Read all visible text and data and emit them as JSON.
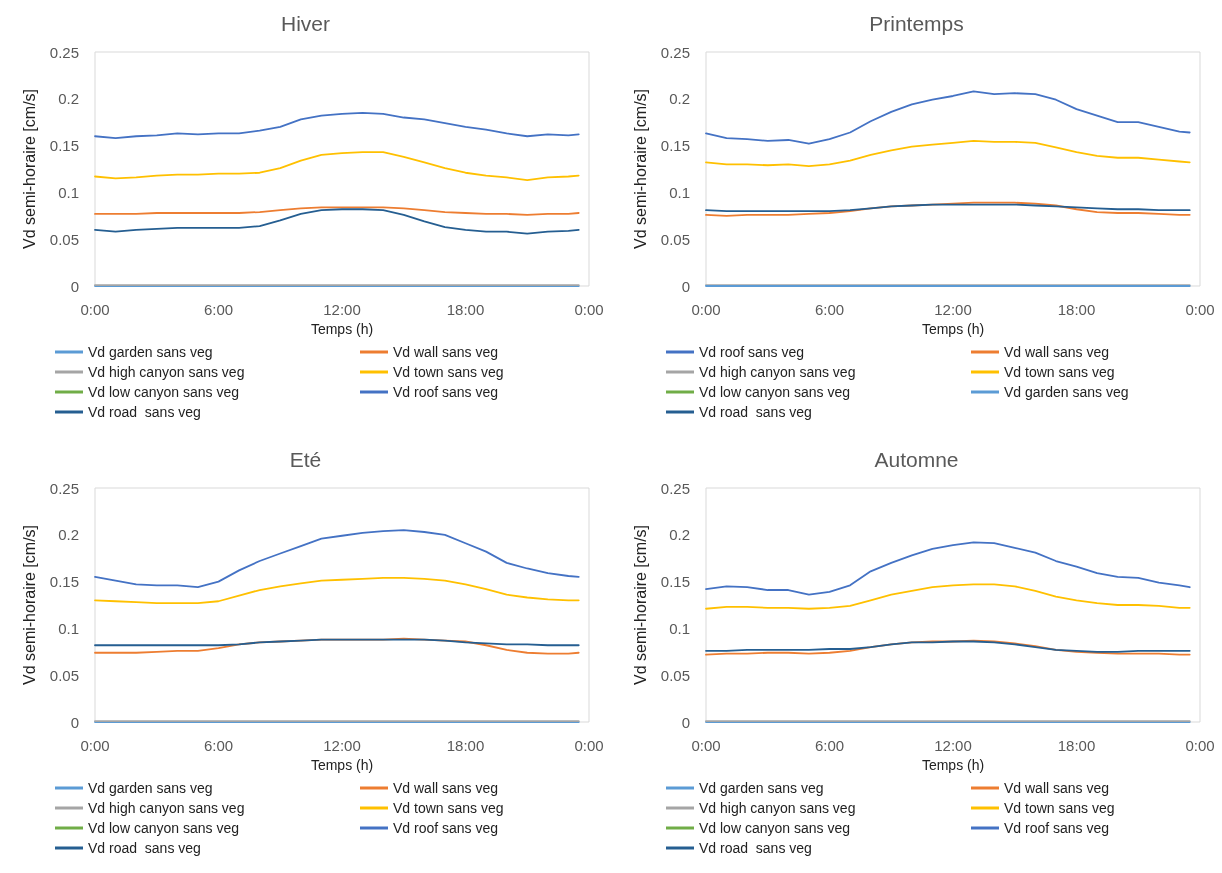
{
  "chart_data": [
    {
      "type": "line",
      "title": "Hiver",
      "xlabel": "Temps (h)",
      "ylabel": "Vd semi-horaire [cm/s]",
      "xlim": [
        0,
        24
      ],
      "xticks": [
        {
          "value": 0,
          "label": "0:00"
        },
        {
          "value": 6,
          "label": "6:00"
        },
        {
          "value": 12,
          "label": "12:00"
        },
        {
          "value": 18,
          "label": "18:00"
        },
        {
          "value": 24,
          "label": "0:00"
        }
      ],
      "ylim": [
        0,
        0.25
      ],
      "yticks": [
        0,
        0.05,
        0.1,
        0.15,
        0.2,
        0.25
      ],
      "grid": false,
      "legend": "bottom",
      "marker": "none",
      "x": [
        0,
        1,
        2,
        3,
        4,
        5,
        6,
        7,
        8,
        9,
        10,
        11,
        12,
        13,
        14,
        15,
        16,
        17,
        18,
        19,
        20,
        21,
        22,
        23,
        23.5
      ],
      "series": [
        {
          "name": "Vd garden sans veg",
          "color": "#5b9bd5",
          "values": [
            0,
            0,
            0,
            0,
            0,
            0,
            0,
            0,
            0,
            0,
            0,
            0,
            0,
            0,
            0,
            0,
            0,
            0,
            0,
            0,
            0,
            0,
            0,
            0,
            0
          ]
        },
        {
          "name": "Vd wall sans veg",
          "color": "#ed7d31",
          "values": [
            0.077,
            0.077,
            0.077,
            0.078,
            0.078,
            0.078,
            0.078,
            0.078,
            0.079,
            0.081,
            0.083,
            0.084,
            0.084,
            0.084,
            0.084,
            0.083,
            0.081,
            0.079,
            0.078,
            0.077,
            0.077,
            0.076,
            0.077,
            0.077,
            0.078
          ]
        },
        {
          "name": "Vd high canyon sans veg",
          "color": "#a5a5a5",
          "values": [
            0.001,
            0.001,
            0.001,
            0.001,
            0.001,
            0.001,
            0.001,
            0.001,
            0.001,
            0.001,
            0.001,
            0.001,
            0.001,
            0.001,
            0.001,
            0.001,
            0.001,
            0.001,
            0.001,
            0.001,
            0.001,
            0.001,
            0.001,
            0.001,
            0.001
          ]
        },
        {
          "name": "Vd town sans veg",
          "color": "#ffc000",
          "values": [
            0.117,
            0.115,
            0.116,
            0.118,
            0.119,
            0.119,
            0.12,
            0.12,
            0.121,
            0.126,
            0.134,
            0.14,
            0.142,
            0.143,
            0.143,
            0.138,
            0.132,
            0.126,
            0.121,
            0.118,
            0.116,
            0.113,
            0.116,
            0.117,
            0.118
          ]
        },
        {
          "name": "Vd low canyon sans veg",
          "color": "#70ad47",
          "values": [
            null,
            null,
            null,
            null,
            null,
            null,
            null,
            null,
            null,
            null,
            null,
            null,
            null,
            null,
            null,
            null,
            null,
            null,
            null,
            null,
            null,
            null,
            null,
            null,
            null
          ]
        },
        {
          "name": "Vd roof sans veg",
          "color": "#4472c4",
          "values": [
            0.16,
            0.158,
            0.16,
            0.161,
            0.163,
            0.162,
            0.163,
            0.163,
            0.166,
            0.17,
            0.178,
            0.182,
            0.184,
            0.185,
            0.184,
            0.18,
            0.178,
            0.174,
            0.17,
            0.167,
            0.163,
            0.16,
            0.162,
            0.161,
            0.162
          ]
        },
        {
          "name": "Vd road  sans veg",
          "color": "#255e91",
          "values": [
            0.06,
            0.058,
            0.06,
            0.061,
            0.062,
            0.062,
            0.062,
            0.062,
            0.064,
            0.07,
            0.077,
            0.081,
            0.082,
            0.082,
            0.081,
            0.076,
            0.069,
            0.063,
            0.06,
            0.058,
            0.058,
            0.056,
            0.058,
            0.059,
            0.06
          ]
        }
      ]
    },
    {
      "type": "line",
      "title": "Printemps",
      "xlabel": "Temps (h)",
      "ylabel": "Vd semi-horaire [cm/s]",
      "xlim": [
        0,
        24
      ],
      "xticks": [
        {
          "value": 0,
          "label": "0:00"
        },
        {
          "value": 6,
          "label": "6:00"
        },
        {
          "value": 12,
          "label": "12:00"
        },
        {
          "value": 18,
          "label": "18:00"
        },
        {
          "value": 24,
          "label": "0:00"
        }
      ],
      "ylim": [
        0,
        0.25
      ],
      "yticks": [
        0,
        0.05,
        0.1,
        0.15,
        0.2,
        0.25
      ],
      "grid": false,
      "legend": "bottom",
      "marker": "none",
      "x": [
        0,
        1,
        2,
        3,
        4,
        5,
        6,
        7,
        8,
        9,
        10,
        11,
        12,
        13,
        14,
        15,
        16,
        17,
        18,
        19,
        20,
        21,
        22,
        23,
        23.5
      ],
      "series": [
        {
          "name": "Vd roof sans veg",
          "color": "#4472c4",
          "values": [
            0.163,
            0.158,
            0.157,
            0.155,
            0.156,
            0.152,
            0.157,
            0.164,
            0.176,
            0.186,
            0.194,
            0.199,
            0.203,
            0.208,
            0.205,
            0.206,
            0.205,
            0.199,
            0.189,
            0.182,
            0.175,
            0.175,
            0.17,
            0.165,
            0.164
          ]
        },
        {
          "name": "Vd wall sans veg",
          "color": "#ed7d31",
          "values": [
            0.076,
            0.075,
            0.076,
            0.076,
            0.076,
            0.077,
            0.078,
            0.08,
            0.083,
            0.085,
            0.086,
            0.087,
            0.088,
            0.089,
            0.089,
            0.089,
            0.088,
            0.086,
            0.082,
            0.079,
            0.078,
            0.078,
            0.077,
            0.076,
            0.076
          ]
        },
        {
          "name": "Vd high canyon sans veg",
          "color": "#a5a5a5",
          "values": [
            0.001,
            0.001,
            0.001,
            0.001,
            0.001,
            0.001,
            0.001,
            0.001,
            0.001,
            0.001,
            0.001,
            0.001,
            0.001,
            0.001,
            0.001,
            0.001,
            0.001,
            0.001,
            0.001,
            0.001,
            0.001,
            0.001,
            0.001,
            0.001,
            0.001
          ]
        },
        {
          "name": "Vd town sans veg",
          "color": "#ffc000",
          "values": [
            0.132,
            0.13,
            0.13,
            0.129,
            0.13,
            0.128,
            0.13,
            0.134,
            0.14,
            0.145,
            0.149,
            0.151,
            0.153,
            0.155,
            0.154,
            0.154,
            0.153,
            0.148,
            0.143,
            0.139,
            0.137,
            0.137,
            0.135,
            0.133,
            0.132
          ]
        },
        {
          "name": "Vd low canyon sans veg",
          "color": "#70ad47",
          "values": [
            null,
            null,
            null,
            null,
            null,
            null,
            null,
            null,
            null,
            null,
            null,
            null,
            null,
            null,
            null,
            null,
            null,
            null,
            null,
            null,
            null,
            null,
            null,
            null,
            null
          ]
        },
        {
          "name": "Vd garden sans veg",
          "color": "#5b9bd5",
          "values": [
            0,
            0,
            0,
            0,
            0,
            0,
            0,
            0,
            0,
            0,
            0,
            0,
            0,
            0,
            0,
            0,
            0,
            0,
            0,
            0,
            0,
            0,
            0,
            0,
            0
          ]
        },
        {
          "name": "Vd road  sans veg",
          "color": "#255e91",
          "values": [
            0.081,
            0.08,
            0.08,
            0.08,
            0.08,
            0.08,
            0.08,
            0.081,
            0.083,
            0.085,
            0.086,
            0.087,
            0.087,
            0.087,
            0.087,
            0.087,
            0.086,
            0.085,
            0.084,
            0.083,
            0.082,
            0.082,
            0.081,
            0.081,
            0.081
          ]
        }
      ]
    },
    {
      "type": "line",
      "title": "Eté",
      "xlabel": "Temps (h)",
      "ylabel": "Vd semi-horaire [cm/s]",
      "xlim": [
        0,
        24
      ],
      "xticks": [
        {
          "value": 0,
          "label": "0:00"
        },
        {
          "value": 6,
          "label": "6:00"
        },
        {
          "value": 12,
          "label": "12:00"
        },
        {
          "value": 18,
          "label": "18:00"
        },
        {
          "value": 24,
          "label": "0:00"
        }
      ],
      "ylim": [
        0,
        0.25
      ],
      "yticks": [
        0,
        0.05,
        0.1,
        0.15,
        0.2,
        0.25
      ],
      "grid": false,
      "legend": "bottom",
      "marker": "none",
      "x": [
        0,
        1,
        2,
        3,
        4,
        5,
        6,
        7,
        8,
        9,
        10,
        11,
        12,
        13,
        14,
        15,
        16,
        17,
        18,
        19,
        20,
        21,
        22,
        23,
        23.5
      ],
      "series": [
        {
          "name": "Vd garden sans veg",
          "color": "#5b9bd5",
          "values": [
            0,
            0,
            0,
            0,
            0,
            0,
            0,
            0,
            0,
            0,
            0,
            0,
            0,
            0,
            0,
            0,
            0,
            0,
            0,
            0,
            0,
            0,
            0,
            0,
            0
          ]
        },
        {
          "name": "Vd wall sans veg",
          "color": "#ed7d31",
          "values": [
            0.074,
            0.074,
            0.074,
            0.075,
            0.076,
            0.076,
            0.079,
            0.083,
            0.085,
            0.086,
            0.087,
            0.088,
            0.088,
            0.088,
            0.088,
            0.089,
            0.088,
            0.087,
            0.086,
            0.082,
            0.077,
            0.074,
            0.073,
            0.073,
            0.074
          ]
        },
        {
          "name": "Vd high canyon sans veg",
          "color": "#a5a5a5",
          "values": [
            0.001,
            0.001,
            0.001,
            0.001,
            0.001,
            0.001,
            0.001,
            0.001,
            0.001,
            0.001,
            0.001,
            0.001,
            0.001,
            0.001,
            0.001,
            0.001,
            0.001,
            0.001,
            0.001,
            0.001,
            0.001,
            0.001,
            0.001,
            0.001,
            0.001
          ]
        },
        {
          "name": "Vd town sans veg",
          "color": "#ffc000",
          "values": [
            0.13,
            0.129,
            0.128,
            0.127,
            0.127,
            0.127,
            0.129,
            0.135,
            0.141,
            0.145,
            0.148,
            0.151,
            0.152,
            0.153,
            0.154,
            0.154,
            0.153,
            0.151,
            0.147,
            0.142,
            0.136,
            0.133,
            0.131,
            0.13,
            0.13
          ]
        },
        {
          "name": "Vd low canyon sans veg",
          "color": "#70ad47",
          "values": [
            null,
            null,
            null,
            null,
            null,
            null,
            null,
            null,
            null,
            null,
            null,
            null,
            null,
            null,
            null,
            null,
            null,
            null,
            null,
            null,
            null,
            null,
            null,
            null,
            null
          ]
        },
        {
          "name": "Vd roof sans veg",
          "color": "#4472c4",
          "values": [
            0.155,
            0.151,
            0.147,
            0.146,
            0.146,
            0.144,
            0.15,
            0.162,
            0.172,
            0.18,
            0.188,
            0.196,
            0.199,
            0.202,
            0.204,
            0.205,
            0.203,
            0.2,
            0.191,
            0.182,
            0.17,
            0.164,
            0.159,
            0.156,
            0.155
          ]
        },
        {
          "name": "Vd road  sans veg",
          "color": "#255e91",
          "values": [
            0.082,
            0.082,
            0.082,
            0.082,
            0.082,
            0.082,
            0.082,
            0.083,
            0.085,
            0.086,
            0.087,
            0.088,
            0.088,
            0.088,
            0.088,
            0.088,
            0.088,
            0.087,
            0.085,
            0.084,
            0.083,
            0.083,
            0.082,
            0.082,
            0.082
          ]
        }
      ]
    },
    {
      "type": "line",
      "title": "Automne",
      "xlabel": "Temps (h)",
      "ylabel": "Vd semi-horaire [cm/s]",
      "xlim": [
        0,
        24
      ],
      "xticks": [
        {
          "value": 0,
          "label": "0:00"
        },
        {
          "value": 6,
          "label": "6:00"
        },
        {
          "value": 12,
          "label": "12:00"
        },
        {
          "value": 18,
          "label": "18:00"
        },
        {
          "value": 24,
          "label": "0:00"
        }
      ],
      "ylim": [
        0,
        0.25
      ],
      "yticks": [
        0,
        0.05,
        0.1,
        0.15,
        0.2,
        0.25
      ],
      "grid": false,
      "legend": "bottom",
      "marker": "none",
      "x": [
        0,
        1,
        2,
        3,
        4,
        5,
        6,
        7,
        8,
        9,
        10,
        11,
        12,
        13,
        14,
        15,
        16,
        17,
        18,
        19,
        20,
        21,
        22,
        23,
        23.5
      ],
      "series": [
        {
          "name": "Vd garden sans veg",
          "color": "#5b9bd5",
          "values": [
            0,
            0,
            0,
            0,
            0,
            0,
            0,
            0,
            0,
            0,
            0,
            0,
            0,
            0,
            0,
            0,
            0,
            0,
            0,
            0,
            0,
            0,
            0,
            0,
            0
          ]
        },
        {
          "name": "Vd wall sans veg",
          "color": "#ed7d31",
          "values": [
            0.072,
            0.073,
            0.073,
            0.074,
            0.074,
            0.073,
            0.074,
            0.076,
            0.08,
            0.083,
            0.085,
            0.086,
            0.086,
            0.087,
            0.086,
            0.084,
            0.081,
            0.077,
            0.075,
            0.074,
            0.073,
            0.073,
            0.073,
            0.072,
            0.072
          ]
        },
        {
          "name": "Vd high canyon sans veg",
          "color": "#a5a5a5",
          "values": [
            0.001,
            0.001,
            0.001,
            0.001,
            0.001,
            0.001,
            0.001,
            0.001,
            0.001,
            0.001,
            0.001,
            0.001,
            0.001,
            0.001,
            0.001,
            0.001,
            0.001,
            0.001,
            0.001,
            0.001,
            0.001,
            0.001,
            0.001,
            0.001,
            0.001
          ]
        },
        {
          "name": "Vd town sans veg",
          "color": "#ffc000",
          "values": [
            0.121,
            0.123,
            0.123,
            0.122,
            0.122,
            0.121,
            0.122,
            0.124,
            0.13,
            0.136,
            0.14,
            0.144,
            0.146,
            0.147,
            0.147,
            0.145,
            0.14,
            0.134,
            0.13,
            0.127,
            0.125,
            0.125,
            0.124,
            0.122,
            0.122
          ]
        },
        {
          "name": "Vd low canyon sans veg",
          "color": "#70ad47",
          "values": [
            null,
            null,
            null,
            null,
            null,
            null,
            null,
            null,
            null,
            null,
            null,
            null,
            null,
            null,
            null,
            null,
            null,
            null,
            null,
            null,
            null,
            null,
            null,
            null,
            null
          ]
        },
        {
          "name": "Vd roof sans veg",
          "color": "#4472c4",
          "values": [
            0.142,
            0.145,
            0.144,
            0.141,
            0.141,
            0.136,
            0.139,
            0.146,
            0.161,
            0.17,
            0.178,
            0.185,
            0.189,
            0.192,
            0.191,
            0.186,
            0.181,
            0.172,
            0.166,
            0.159,
            0.155,
            0.154,
            0.149,
            0.146,
            0.144
          ]
        },
        {
          "name": "Vd road  sans veg",
          "color": "#255e91",
          "values": [
            0.076,
            0.076,
            0.077,
            0.077,
            0.077,
            0.077,
            0.078,
            0.078,
            0.08,
            0.083,
            0.085,
            0.085,
            0.086,
            0.086,
            0.085,
            0.083,
            0.08,
            0.077,
            0.076,
            0.075,
            0.075,
            0.076,
            0.076,
            0.076,
            0.076
          ]
        }
      ]
    }
  ]
}
